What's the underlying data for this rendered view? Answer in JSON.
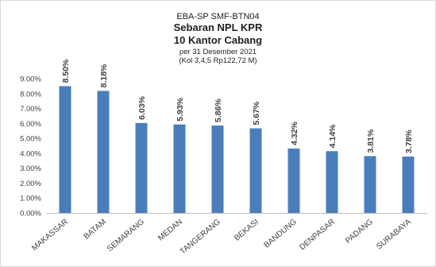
{
  "chart_data": {
    "type": "bar",
    "title_lines": [
      "EBA-SP  SMF-BTN04",
      "Sebaran NPL KPR",
      "10 Kantor Cabang",
      "per 31 Desember 2021",
      "(Kol 3,4,5 Rp122,72  M)"
    ],
    "categories": [
      "MAKASSAR",
      "BATAM",
      "SEMARANG",
      "MEDAN",
      "TANGERANG",
      "BEKASI",
      "BANDUNG",
      "DENPASAR",
      "PADANG",
      "SURABAYA"
    ],
    "values": [
      8.5,
      8.18,
      6.03,
      5.93,
      5.86,
      5.67,
      4.32,
      4.14,
      3.81,
      3.78
    ],
    "data_labels": [
      "8.50%",
      "8.18%",
      "6.03%",
      "5.93%",
      "5.86%",
      "5.67%",
      "4.32%",
      "4.14%",
      "3.81%",
      "3.78%"
    ],
    "y_ticks": [
      "0.00%",
      "1.00%",
      "2.00%",
      "3.00%",
      "4.00%",
      "5.00%",
      "6.00%",
      "7.00%",
      "8.00%",
      "9.00%"
    ],
    "ylim": [
      0,
      9
    ],
    "xlabel": "",
    "ylabel": "",
    "grid": false,
    "bar_color": "#4a7ebb"
  }
}
